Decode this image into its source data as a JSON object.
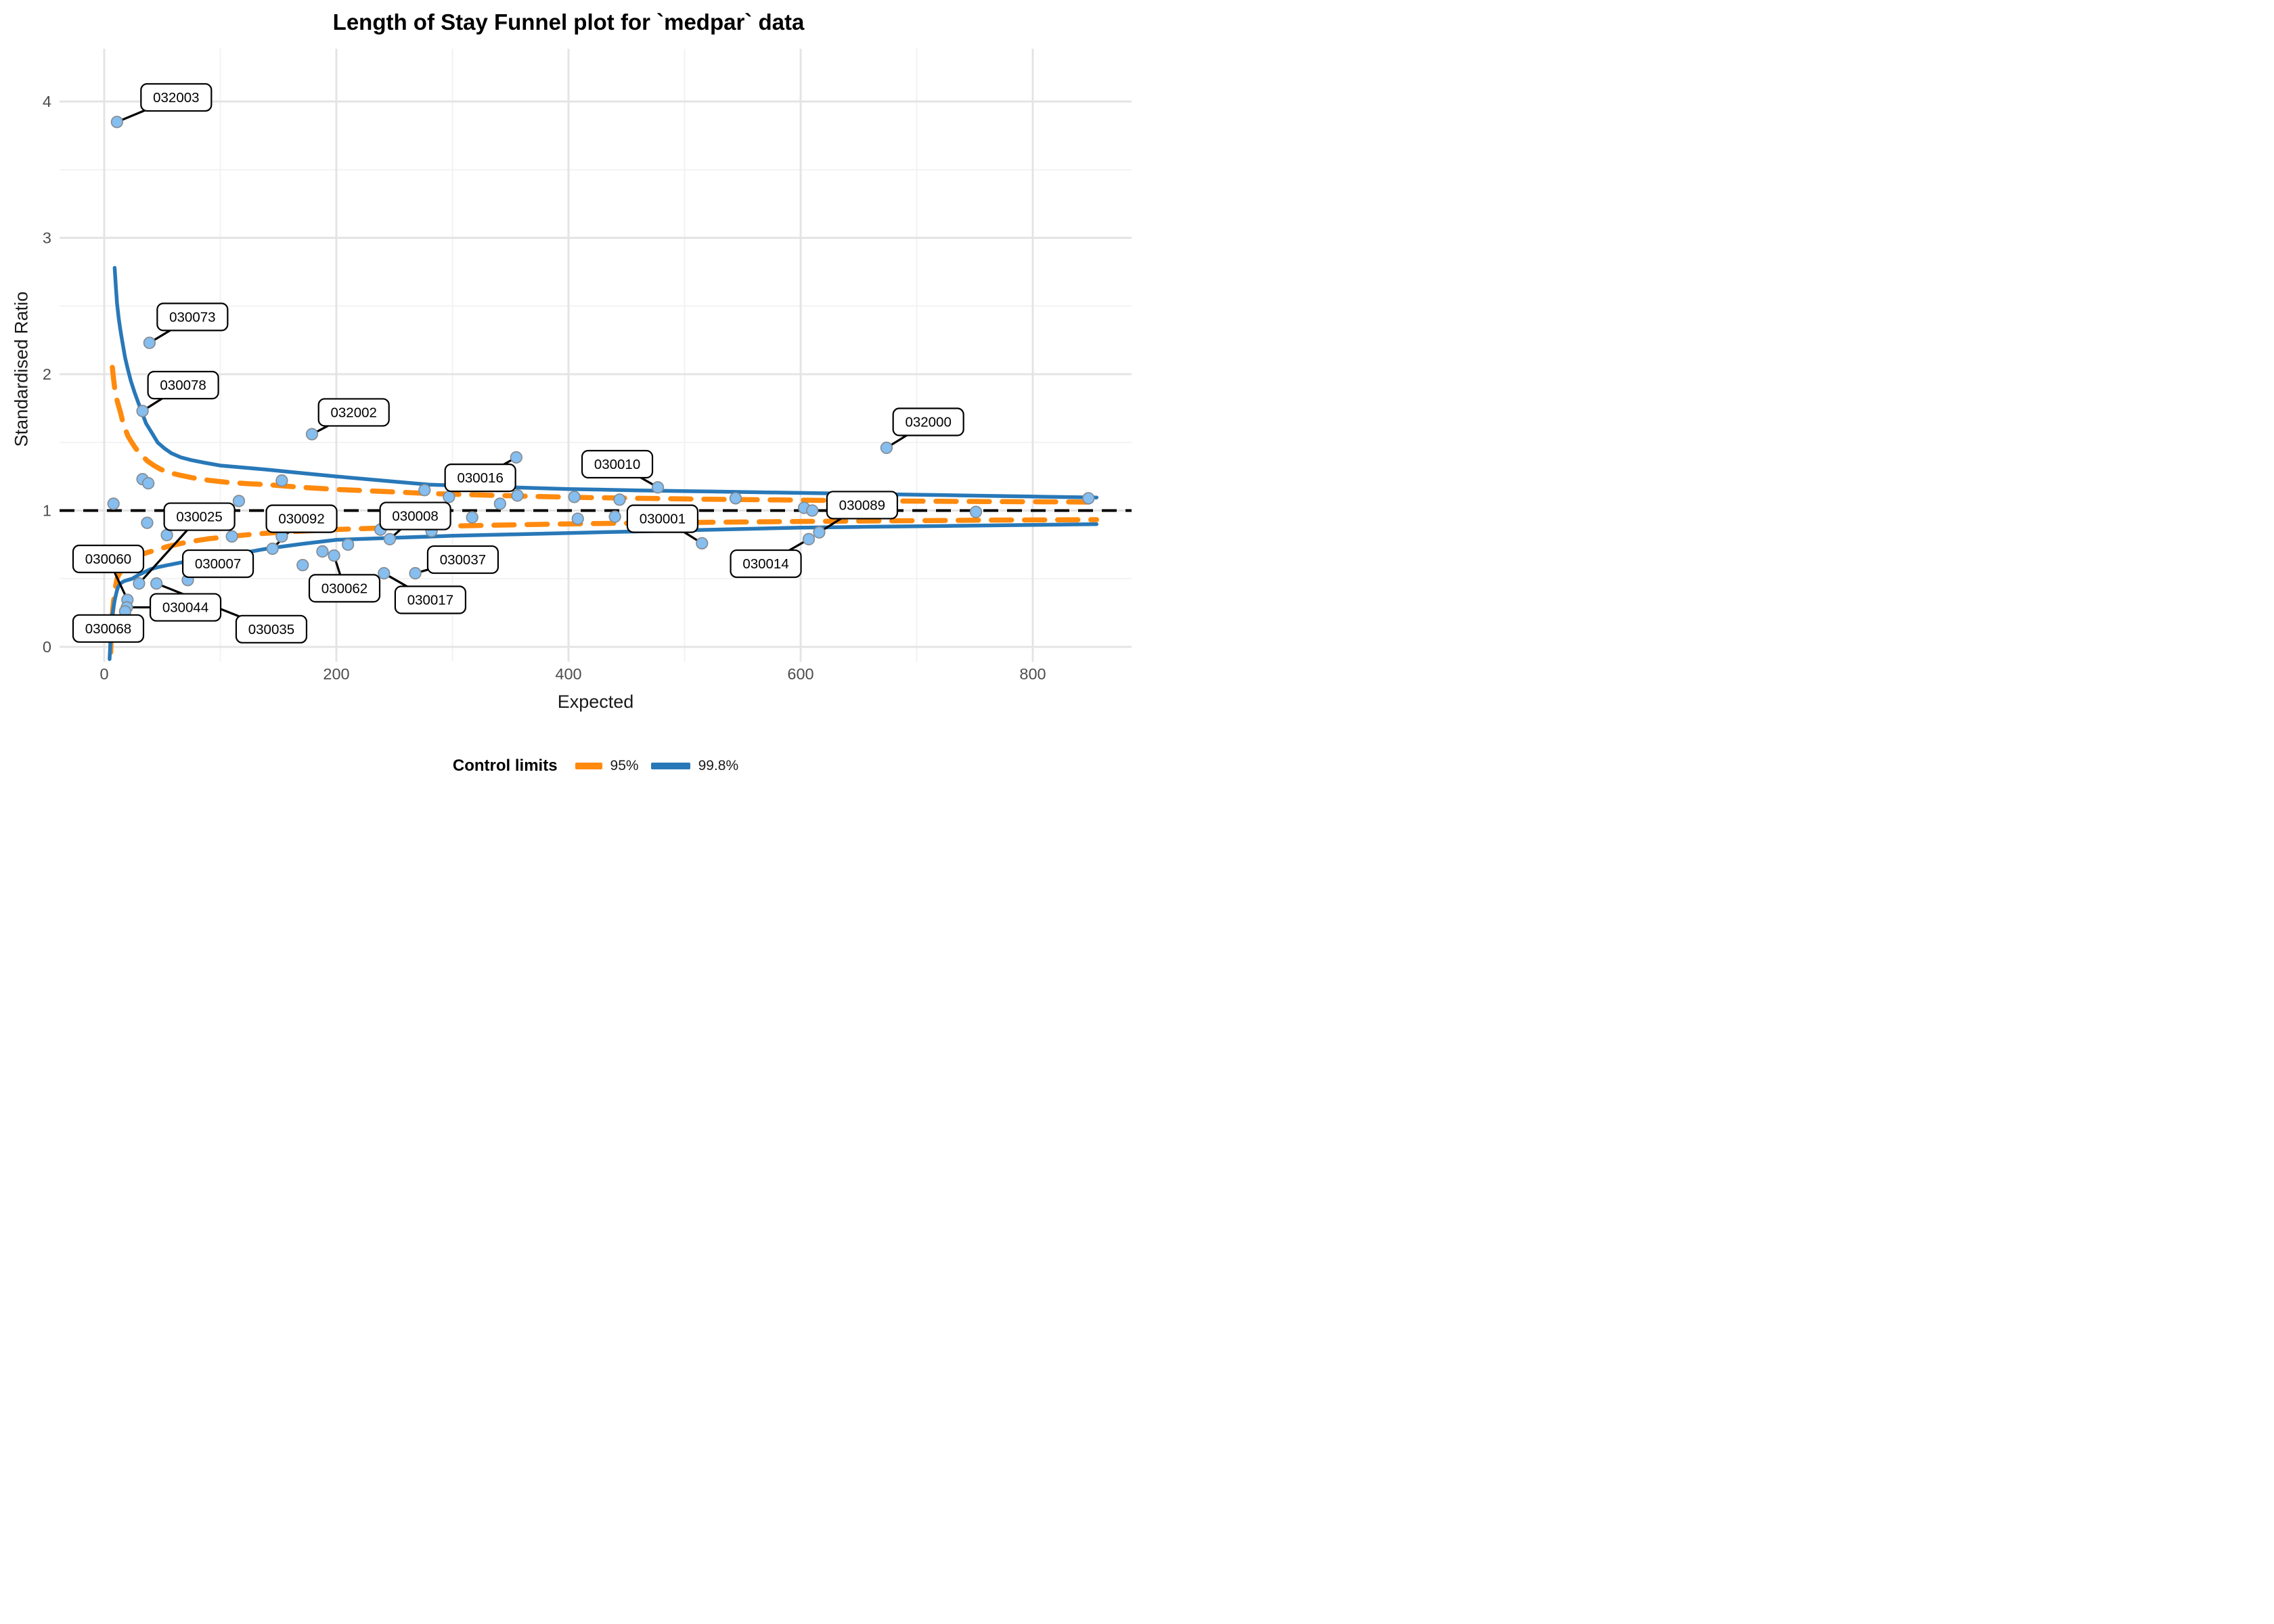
{
  "title": "Length of Stay Funnel plot for `medpar` data",
  "axes": {
    "x_label": "Expected",
    "y_label": "Standardised Ratio",
    "x_ticks": [
      0,
      200,
      400,
      600,
      800
    ],
    "x_minor": [
      100,
      300,
      500,
      700
    ],
    "y_ticks": [
      0,
      1,
      2,
      3,
      4
    ],
    "y_minor": [
      0.5,
      1.5,
      2.5,
      3.5
    ]
  },
  "legend": {
    "title": "Control limits",
    "items": [
      {
        "label": "95%",
        "color": "#FF8A0E",
        "style": "dashed"
      },
      {
        "label": "99.8%",
        "color": "#2878B8",
        "style": "solid"
      }
    ]
  },
  "colors": {
    "limit_95": "#FF8A0E",
    "limit_99_8": "#2878B8",
    "point_fill": "#85BEEF",
    "point_stroke": "#858C94",
    "reference_line": "#000000",
    "grid_major": "#E4E4E4",
    "grid_minor": "#F1F1F1",
    "tick_text": "#4D4D4D",
    "label_box_fill": "#FFFFFF",
    "label_box_border": "#000000"
  },
  "chart_data": {
    "type": "scatter",
    "title": "Length of Stay Funnel plot for `medpar` data",
    "xlabel": "Expected",
    "ylabel": "Standardised Ratio",
    "xlim": [
      -38,
      884
    ],
    "ylim": [
      -0.1,
      4.38
    ],
    "reference_line_y": 1,
    "labeled_points": [
      {
        "id": "032003",
        "x": 11,
        "y": 3.85,
        "label_x": 62,
        "label_y": 4.03
      },
      {
        "id": "030073",
        "x": 39,
        "y": 2.23,
        "label_x": 76,
        "label_y": 2.42
      },
      {
        "id": "030078",
        "x": 33,
        "y": 1.73,
        "label_x": 68,
        "label_y": 1.92
      },
      {
        "id": "032002",
        "x": 179,
        "y": 1.56,
        "label_x": 215,
        "label_y": 1.72
      },
      {
        "id": "030016",
        "x": 355,
        "y": 1.39,
        "label_x": 324,
        "label_y": 1.24
      },
      {
        "id": "030010",
        "x": 477,
        "y": 1.17,
        "label_x": 442,
        "label_y": 1.34
      },
      {
        "id": "032000",
        "x": 674,
        "y": 1.46,
        "label_x": 710,
        "label_y": 1.65
      },
      {
        "id": "030025",
        "x": 30,
        "y": 0.465,
        "label_x": 82,
        "label_y": 0.955
      },
      {
        "id": "030092",
        "x": 145,
        "y": 0.72,
        "label_x": 170,
        "label_y": 0.94
      },
      {
        "id": "030008",
        "x": 246,
        "y": 0.79,
        "label_x": 268,
        "label_y": 0.96
      },
      {
        "id": "030001",
        "x": 515,
        "y": 0.76,
        "label_x": 481,
        "label_y": 0.94
      },
      {
        "id": "030089",
        "x": 616,
        "y": 0.84,
        "label_x": 653,
        "label_y": 1.04
      },
      {
        "id": "030060",
        "x": 20,
        "y": 0.345,
        "label_x": 3.5,
        "label_y": 0.645
      },
      {
        "id": "030007",
        "x": 72,
        "y": 0.49,
        "label_x": 98,
        "label_y": 0.61
      },
      {
        "id": "030037",
        "x": 268,
        "y": 0.54,
        "label_x": 309,
        "label_y": 0.64
      },
      {
        "id": "030014",
        "x": 607,
        "y": 0.79,
        "label_x": 570,
        "label_y": 0.61
      },
      {
        "id": "030044",
        "x": 19.5,
        "y": 0.29,
        "label_x": 70,
        "label_y": 0.29
      },
      {
        "id": "030062",
        "x": 198,
        "y": 0.67,
        "label_x": 207,
        "label_y": 0.43
      },
      {
        "id": "030017",
        "x": 241,
        "y": 0.54,
        "label_x": 281,
        "label_y": 0.345
      },
      {
        "id": "030068",
        "x": 18,
        "y": 0.26,
        "label_x": 3.5,
        "label_y": 0.135
      },
      {
        "id": "030035",
        "x": 45,
        "y": 0.465,
        "label_x": 144,
        "label_y": 0.13
      }
    ],
    "unlabeled_points": [
      [
        8,
        1.05
      ],
      [
        33,
        1.23
      ],
      [
        38,
        1.2
      ],
      [
        37,
        0.91
      ],
      [
        54,
        0.82
      ],
      [
        110,
        0.81
      ],
      [
        116,
        1.07
      ],
      [
        153,
        1.22
      ],
      [
        153,
        0.81
      ],
      [
        171,
        0.6
      ],
      [
        188,
        0.7
      ],
      [
        210,
        0.75
      ],
      [
        238,
        0.86
      ],
      [
        282,
        0.85
      ],
      [
        276,
        1.15
      ],
      [
        297,
        1.1
      ],
      [
        317,
        0.95
      ],
      [
        341,
        1.05
      ],
      [
        356,
        1.11
      ],
      [
        405,
        1.1
      ],
      [
        408,
        0.94
      ],
      [
        440,
        0.955
      ],
      [
        444,
        1.08
      ],
      [
        544,
        1.09
      ],
      [
        603,
        1.02
      ],
      [
        610,
        1.0
      ],
      [
        751,
        0.99
      ],
      [
        848,
        1.09
      ]
    ],
    "control_limits": {
      "p95_upper": [
        [
          7,
          2.05
        ],
        [
          8,
          1.97
        ],
        [
          9,
          1.9
        ],
        [
          10,
          1.845
        ],
        [
          11,
          1.81
        ],
        [
          12.5,
          1.765
        ],
        [
          14,
          1.72
        ],
        [
          16,
          1.65
        ],
        [
          18,
          1.6
        ],
        [
          20.5,
          1.545
        ],
        [
          23,
          1.51
        ],
        [
          26,
          1.47
        ],
        [
          29,
          1.435
        ],
        [
          33,
          1.4
        ],
        [
          37,
          1.365
        ],
        [
          42,
          1.335
        ],
        [
          48,
          1.305
        ],
        [
          55,
          1.28
        ],
        [
          65,
          1.26
        ],
        [
          76,
          1.24
        ],
        [
          90,
          1.222
        ],
        [
          105,
          1.208
        ],
        [
          122,
          1.198
        ],
        [
          140,
          1.19
        ],
        [
          170,
          1.17
        ],
        [
          200,
          1.155
        ],
        [
          240,
          1.14
        ],
        [
          280,
          1.125
        ],
        [
          340,
          1.11
        ],
        [
          400,
          1.098
        ],
        [
          460,
          1.09
        ],
        [
          520,
          1.083
        ],
        [
          580,
          1.078
        ],
        [
          640,
          1.073
        ],
        [
          700,
          1.069
        ],
        [
          760,
          1.066
        ],
        [
          810,
          1.064
        ],
        [
          855,
          1.062
        ]
      ],
      "p95_lower": [
        [
          5.6,
          -0.04
        ],
        [
          6,
          0.08
        ],
        [
          6.5,
          0.17
        ],
        [
          7,
          0.24
        ],
        [
          7.5,
          0.29
        ],
        [
          8,
          0.33
        ],
        [
          9,
          0.4
        ],
        [
          10,
          0.455
        ],
        [
          11,
          0.5
        ],
        [
          12,
          0.52
        ],
        [
          14,
          0.55
        ],
        [
          16,
          0.575
        ],
        [
          18,
          0.6
        ],
        [
          21,
          0.622
        ],
        [
          25,
          0.645
        ],
        [
          29,
          0.664
        ],
        [
          33,
          0.68
        ],
        [
          38,
          0.695
        ],
        [
          45,
          0.71
        ],
        [
          54,
          0.735
        ],
        [
          65,
          0.757
        ],
        [
          77,
          0.776
        ],
        [
          90,
          0.793
        ],
        [
          108,
          0.81
        ],
        [
          130,
          0.828
        ],
        [
          160,
          0.845
        ],
        [
          200,
          0.861
        ],
        [
          250,
          0.875
        ],
        [
          300,
          0.887
        ],
        [
          350,
          0.895
        ],
        [
          400,
          0.902
        ],
        [
          450,
          0.907
        ],
        [
          500,
          0.912
        ],
        [
          550,
          0.916
        ],
        [
          600,
          0.92
        ],
        [
          650,
          0.923
        ],
        [
          700,
          0.926
        ],
        [
          750,
          0.929
        ],
        [
          800,
          0.931
        ],
        [
          855,
          0.933
        ]
      ],
      "p99_8_upper": [
        [
          9,
          2.78
        ],
        [
          10,
          2.64
        ],
        [
          11,
          2.52
        ],
        [
          12.5,
          2.41
        ],
        [
          14,
          2.32
        ],
        [
          16,
          2.22
        ],
        [
          18,
          2.12
        ],
        [
          20.5,
          2.03
        ],
        [
          23,
          1.95
        ],
        [
          26,
          1.87
        ],
        [
          29,
          1.8
        ],
        [
          32.5,
          1.72
        ],
        [
          36,
          1.64
        ],
        [
          41,
          1.57
        ],
        [
          46,
          1.5
        ],
        [
          52,
          1.455
        ],
        [
          58,
          1.42
        ],
        [
          66,
          1.39
        ],
        [
          75,
          1.37
        ],
        [
          87,
          1.35
        ],
        [
          100,
          1.33
        ],
        [
          120,
          1.315
        ],
        [
          140,
          1.3
        ],
        [
          170,
          1.275
        ],
        [
          200,
          1.25
        ],
        [
          240,
          1.22
        ],
        [
          280,
          1.19
        ],
        [
          340,
          1.173
        ],
        [
          400,
          1.158
        ],
        [
          460,
          1.148
        ],
        [
          520,
          1.14
        ],
        [
          580,
          1.132
        ],
        [
          640,
          1.124
        ],
        [
          700,
          1.116
        ],
        [
          760,
          1.108
        ],
        [
          810,
          1.101
        ],
        [
          855,
          1.096
        ]
      ],
      "p99_8_lower": [
        [
          4.6,
          -0.09
        ],
        [
          5,
          -0.02
        ],
        [
          5.5,
          0.06
        ],
        [
          6,
          0.14
        ],
        [
          6.5,
          0.19
        ],
        [
          7,
          0.235
        ],
        [
          8,
          0.29
        ],
        [
          9,
          0.34
        ],
        [
          10,
          0.38
        ],
        [
          11,
          0.415
        ],
        [
          12,
          0.44
        ],
        [
          14,
          0.465
        ],
        [
          16,
          0.477
        ],
        [
          18,
          0.485
        ],
        [
          20,
          0.49
        ],
        [
          24,
          0.5
        ],
        [
          27,
          0.515
        ],
        [
          30,
          0.53
        ],
        [
          35,
          0.55
        ],
        [
          40,
          0.57
        ],
        [
          47,
          0.586
        ],
        [
          55,
          0.6
        ],
        [
          65,
          0.617
        ],
        [
          75,
          0.632
        ],
        [
          87,
          0.646
        ],
        [
          100,
          0.66
        ],
        [
          120,
          0.69
        ],
        [
          140,
          0.72
        ],
        [
          170,
          0.755
        ],
        [
          200,
          0.785
        ],
        [
          250,
          0.8
        ],
        [
          300,
          0.815
        ],
        [
          350,
          0.825
        ],
        [
          400,
          0.835
        ],
        [
          450,
          0.845
        ],
        [
          500,
          0.855
        ],
        [
          550,
          0.865
        ],
        [
          600,
          0.875
        ],
        [
          650,
          0.88
        ],
        [
          700,
          0.885
        ],
        [
          750,
          0.89
        ],
        [
          800,
          0.895
        ],
        [
          855,
          0.9
        ]
      ]
    },
    "legend": {
      "title": "Control limits",
      "items": [
        {
          "label": "95%"
        },
        {
          "label": "99.8%"
        }
      ]
    }
  }
}
